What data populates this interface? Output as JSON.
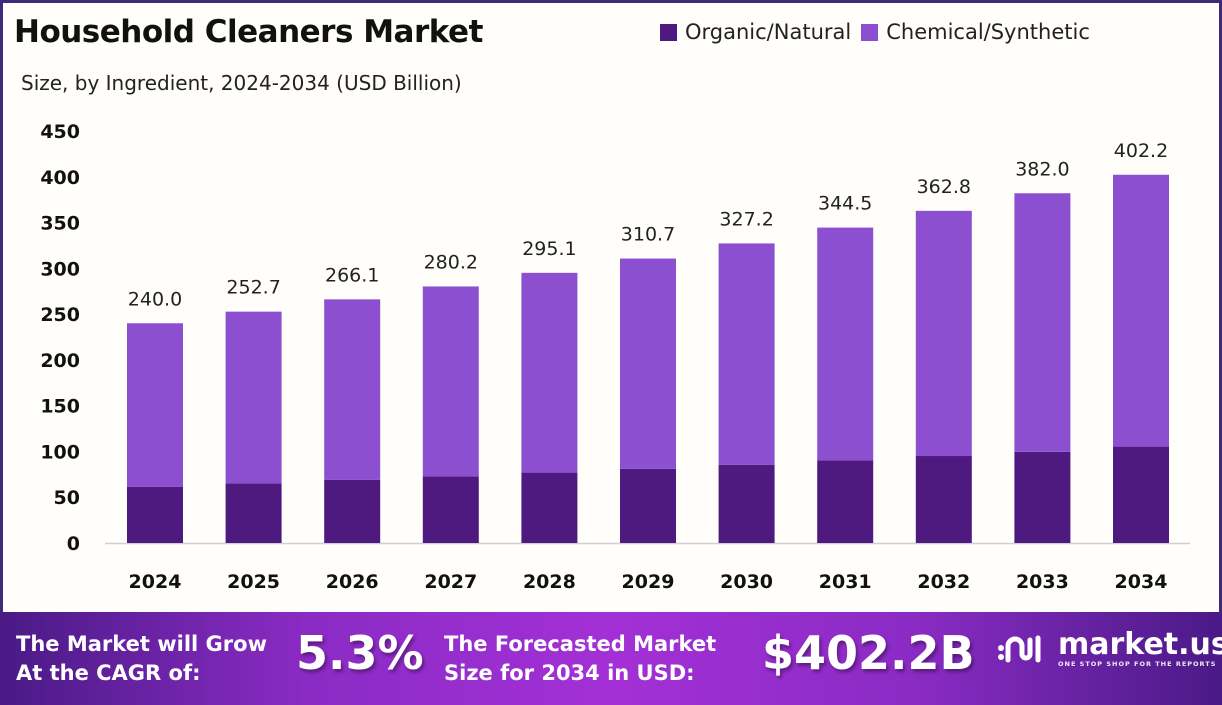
{
  "header": {
    "title": "Household Cleaners Market",
    "subtitle": "Size, by Ingredient, 2024-2034 (USD Billion)"
  },
  "legend": [
    {
      "label": "Organic/Natural",
      "color": "#4f1a7f"
    },
    {
      "label": "Chemical/Synthetic",
      "color": "#8b4fd0"
    }
  ],
  "chart_data": {
    "type": "bar",
    "stacked": true,
    "title": "Household Cleaners Market",
    "subtitle": "Size, by Ingredient, 2024-2034 (USD Billion)",
    "xlabel": "",
    "ylabel": "",
    "ylim": [
      0,
      450
    ],
    "yticks": [
      0,
      50,
      100,
      150,
      200,
      250,
      300,
      350,
      400,
      450
    ],
    "grid": false,
    "legend_position": "top-right",
    "categories": [
      "2024",
      "2025",
      "2026",
      "2027",
      "2028",
      "2029",
      "2030",
      "2031",
      "2032",
      "2033",
      "2034"
    ],
    "totals": [
      240.0,
      252.7,
      266.1,
      280.2,
      295.1,
      310.7,
      327.2,
      344.5,
      362.8,
      382.0,
      402.2
    ],
    "total_labels": [
      "240.0",
      "252.7",
      "266.1",
      "280.2",
      "295.1",
      "310.7",
      "327.2",
      "344.5",
      "362.8",
      "382.0",
      "402.2"
    ],
    "series": [
      {
        "name": "Organic/Natural",
        "color": "#4f1a7f",
        "values": [
          61.5,
          65.2,
          68.9,
          72.8,
          76.9,
          81.0,
          85.5,
          90.2,
          95.0,
          99.6,
          105.3
        ]
      },
      {
        "name": "Chemical/Synthetic",
        "color": "#8b4fd0",
        "values": [
          178.5,
          187.5,
          197.2,
          207.4,
          218.2,
          229.7,
          241.7,
          254.3,
          267.8,
          282.4,
          296.9
        ]
      }
    ]
  },
  "banner": {
    "cagr_text_line1": "The Market will Grow",
    "cagr_text_line2": "At the CAGR of:",
    "cagr_value": "5.3%",
    "forecast_text_line1": "The Forecasted Market",
    "forecast_text_line2": "Size for 2034 in USD:",
    "forecast_value": "$402.2B",
    "logo_name": "market.us",
    "logo_tagline": "ONE STOP SHOP FOR THE REPORTS"
  }
}
